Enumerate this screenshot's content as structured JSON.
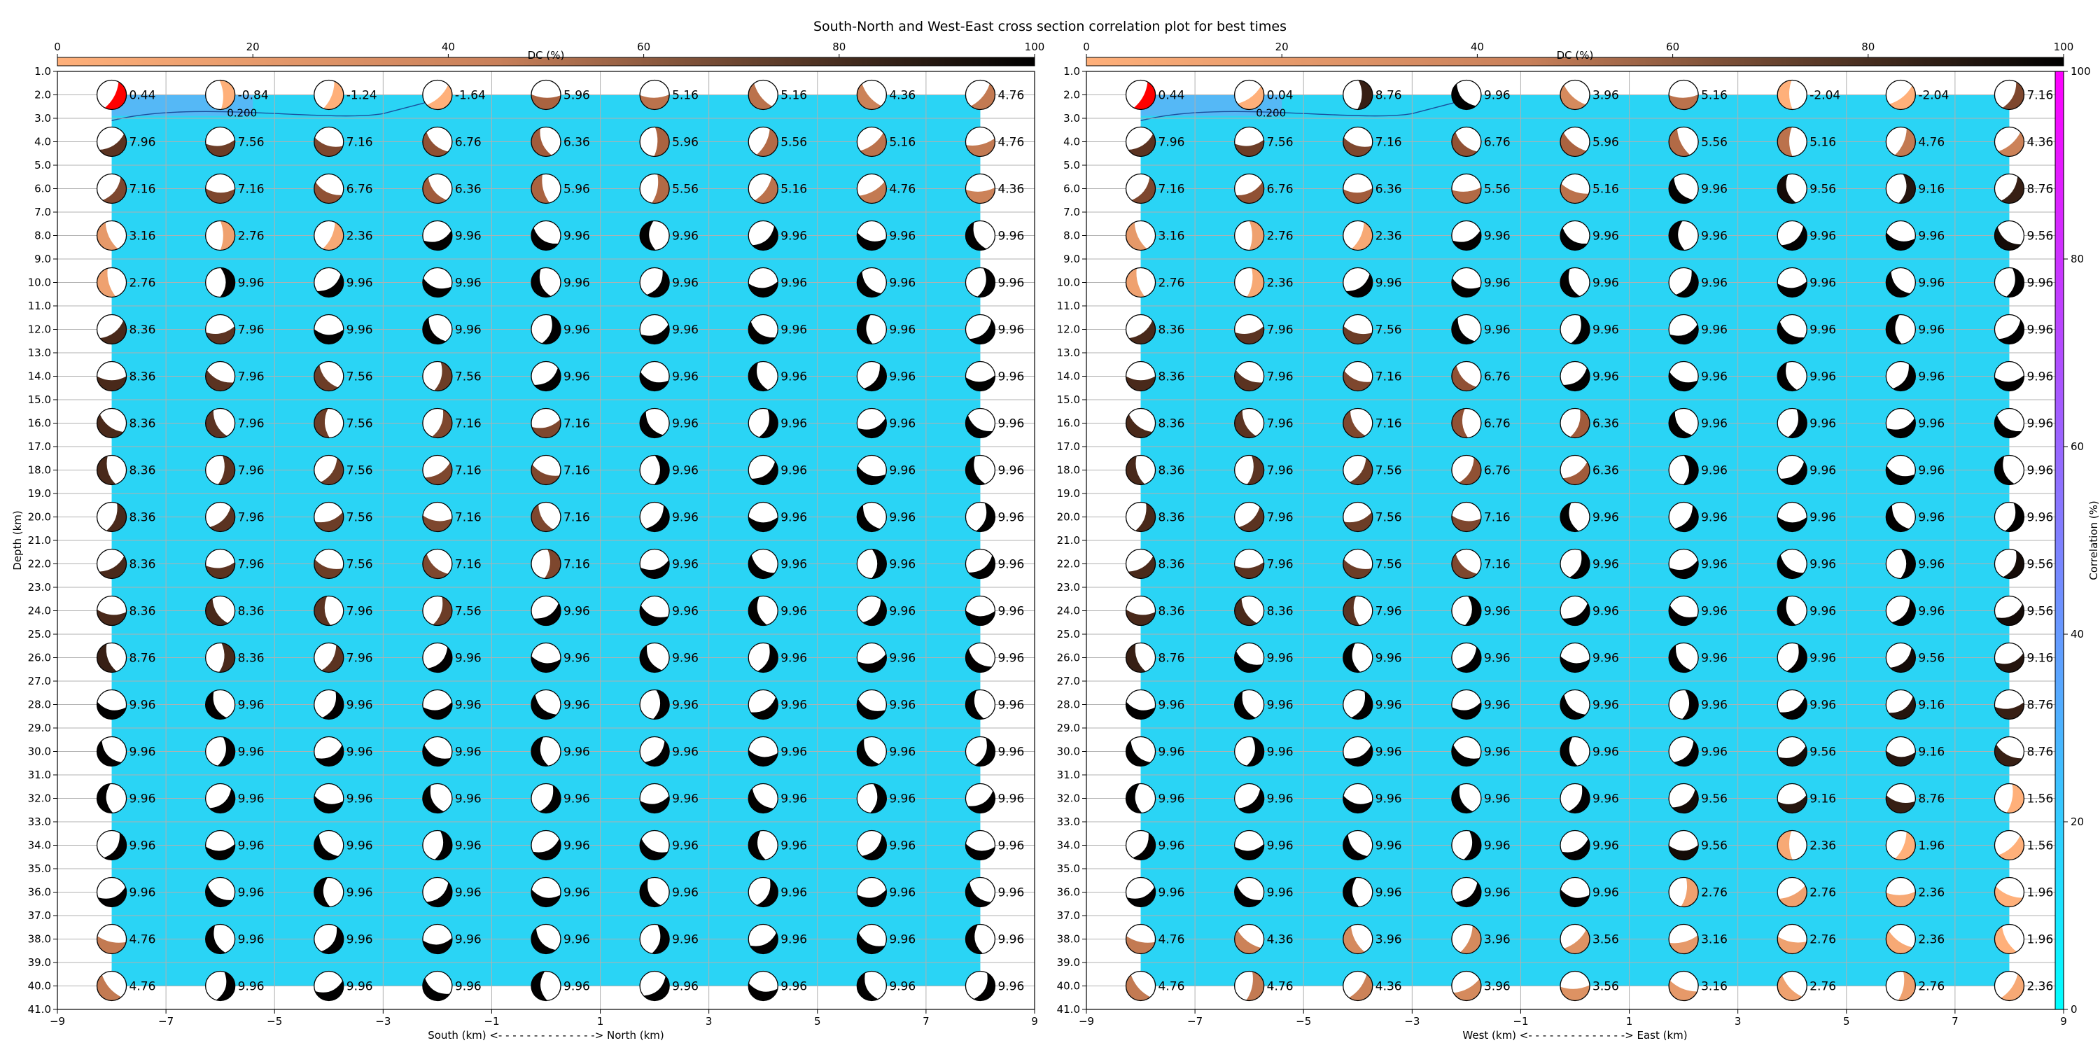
{
  "title": "South-North and West-East cross section correlation plot for best times",
  "colors": {
    "correlation_field": "#2ad4f5",
    "correlation_low": "#00ffff",
    "correlation_high": "#ff00ff",
    "best_solution": "#ff0000",
    "dc_low": "#ffb07a",
    "dc_mid": "#a05a3a",
    "dc_high": "#000000"
  },
  "dc_colorbar": {
    "label": "DC (%)",
    "range": [
      0,
      100
    ],
    "ticks": [
      "0",
      "20",
      "40",
      "60",
      "80",
      "100"
    ],
    "placement": "top"
  },
  "correlation_colorbar": {
    "label": "Correlation (%)",
    "range": [
      0,
      100
    ],
    "ticks": [
      "0",
      "20",
      "40",
      "60",
      "80",
      "100"
    ],
    "placement": "right"
  },
  "chart_data": [
    {
      "type": "heatmap",
      "name": "South-North cross section",
      "xlabel": "South (km) <- - - - - - - - - - - - - -> North (km)",
      "ylabel": "Depth (km)",
      "xlim": [
        -9,
        9
      ],
      "ylim": [
        41,
        1
      ],
      "x_ticks": [
        "−9",
        "−7",
        "−5",
        "−3",
        "−1",
        "1",
        "3",
        "5",
        "7",
        "9"
      ],
      "y_ticks": [
        "1.0",
        "2.0",
        "3.0",
        "4.0",
        "5.0",
        "6.0",
        "7.0",
        "8.0",
        "9.0",
        "10.0",
        "11.0",
        "12.0",
        "13.0",
        "14.0",
        "15.0",
        "16.0",
        "17.0",
        "18.0",
        "19.0",
        "20.0",
        "21.0",
        "22.0",
        "23.0",
        "24.0",
        "25.0",
        "26.0",
        "27.0",
        "28.0",
        "29.0",
        "30.0",
        "31.0",
        "32.0",
        "33.0",
        "34.0",
        "35.0",
        "36.0",
        "37.0",
        "38.0",
        "39.0",
        "40.0",
        "41.0"
      ],
      "grid": true,
      "x": [
        -8,
        -6,
        -4,
        -2,
        0,
        2,
        4,
        6,
        8
      ],
      "depths": [
        2,
        4,
        6,
        8,
        10,
        12,
        14,
        16,
        18,
        20,
        22,
        24,
        26,
        28,
        30,
        32,
        34,
        36,
        38,
        40
      ],
      "contour_label": "0.200",
      "labels": [
        [
          "0.44",
          "-0.84",
          "-1.24",
          "-1.64",
          "5.96",
          "5.16",
          "5.16",
          "4.36",
          "4.76"
        ],
        [
          "7.96",
          "7.56",
          "7.16",
          "6.76",
          "6.36",
          "5.96",
          "5.56",
          "5.16",
          "4.76"
        ],
        [
          "7.16",
          "7.16",
          "6.76",
          "6.36",
          "5.96",
          "5.56",
          "5.16",
          "4.76",
          "4.36"
        ],
        [
          "3.16",
          "2.76",
          "2.36",
          "9.96",
          "9.96",
          "9.96",
          "9.96",
          "9.96",
          "9.96"
        ],
        [
          "2.76",
          "9.96",
          "9.96",
          "9.96",
          "9.96",
          "9.96",
          "9.96",
          "9.96",
          "9.96"
        ],
        [
          "8.36",
          "7.96",
          "9.96",
          "9.96",
          "9.96",
          "9.96",
          "9.96",
          "9.96",
          "9.96"
        ],
        [
          "8.36",
          "7.96",
          "7.56",
          "7.56",
          "9.96",
          "9.96",
          "9.96",
          "9.96",
          "9.96"
        ],
        [
          "8.36",
          "7.96",
          "7.56",
          "7.16",
          "7.16",
          "9.96",
          "9.96",
          "9.96",
          "9.96"
        ],
        [
          "8.36",
          "7.96",
          "7.56",
          "7.16",
          "7.16",
          "9.96",
          "9.96",
          "9.96",
          "9.96"
        ],
        [
          "8.36",
          "7.96",
          "7.56",
          "7.16",
          "7.16",
          "9.96",
          "9.96",
          "9.96",
          "9.96"
        ],
        [
          "8.36",
          "7.96",
          "7.56",
          "7.16",
          "7.16",
          "9.96",
          "9.96",
          "9.96",
          "9.96"
        ],
        [
          "8.36",
          "8.36",
          "7.96",
          "7.56",
          "9.96",
          "9.96",
          "9.96",
          "9.96",
          "9.96"
        ],
        [
          "8.76",
          "8.36",
          "7.96",
          "9.96",
          "9.96",
          "9.96",
          "9.96",
          "9.96",
          "9.96"
        ],
        [
          "9.96",
          "9.96",
          "9.96",
          "9.96",
          "9.96",
          "9.96",
          "9.96",
          "9.96",
          "9.96"
        ],
        [
          "9.96",
          "9.96",
          "9.96",
          "9.96",
          "9.96",
          "9.96",
          "9.96",
          "9.96",
          "9.96"
        ],
        [
          "9.96",
          "9.96",
          "9.96",
          "9.96",
          "9.96",
          "9.96",
          "9.96",
          "9.96",
          "9.96"
        ],
        [
          "9.96",
          "9.96",
          "9.96",
          "9.96",
          "9.96",
          "9.96",
          "9.96",
          "9.96",
          "9.96"
        ],
        [
          "9.96",
          "9.96",
          "9.96",
          "9.96",
          "9.96",
          "9.96",
          "9.96",
          "9.96",
          "9.96"
        ],
        [
          "4.76",
          "9.96",
          "9.96",
          "9.96",
          "9.96",
          "9.96",
          "9.96",
          "9.96",
          "9.96"
        ],
        [
          "4.76",
          "9.96",
          "9.96",
          "9.96",
          "9.96",
          "9.96",
          "9.96",
          "9.96",
          "9.96"
        ]
      ],
      "best": [
        0,
        0
      ]
    },
    {
      "type": "heatmap",
      "name": "West-East cross section",
      "xlabel": "West (km) <- - - - - - - - - - - - - -> East (km)",
      "ylabel": "",
      "xlim": [
        -9,
        9
      ],
      "ylim": [
        41,
        1
      ],
      "x_ticks": [
        "−9",
        "−7",
        "−5",
        "−3",
        "−1",
        "1",
        "3",
        "5",
        "7",
        "9"
      ],
      "y_ticks": [
        "1.0",
        "2.0",
        "3.0",
        "4.0",
        "5.0",
        "6.0",
        "7.0",
        "8.0",
        "9.0",
        "10.0",
        "11.0",
        "12.0",
        "13.0",
        "14.0",
        "15.0",
        "16.0",
        "17.0",
        "18.0",
        "19.0",
        "20.0",
        "21.0",
        "22.0",
        "23.0",
        "24.0",
        "25.0",
        "26.0",
        "27.0",
        "28.0",
        "29.0",
        "30.0",
        "31.0",
        "32.0",
        "33.0",
        "34.0",
        "35.0",
        "36.0",
        "37.0",
        "38.0",
        "39.0",
        "40.0",
        "41.0"
      ],
      "grid": true,
      "x": [
        -8,
        -6,
        -4,
        -2,
        0,
        2,
        4,
        6,
        8
      ],
      "depths": [
        2,
        4,
        6,
        8,
        10,
        12,
        14,
        16,
        18,
        20,
        22,
        24,
        26,
        28,
        30,
        32,
        34,
        36,
        38,
        40
      ],
      "contour_label": "0.200",
      "labels": [
        [
          "0.44",
          "0.04",
          "8.76",
          "9.96",
          "3.96",
          "5.16",
          "-2.04",
          "-2.04",
          "7.16"
        ],
        [
          "7.96",
          "7.56",
          "7.16",
          "6.76",
          "5.96",
          "5.56",
          "5.16",
          "4.76",
          "4.36"
        ],
        [
          "7.16",
          "6.76",
          "6.36",
          "5.56",
          "5.16",
          "9.96",
          "9.56",
          "9.16",
          "8.76"
        ],
        [
          "3.16",
          "2.76",
          "2.36",
          "9.96",
          "9.96",
          "9.96",
          "9.96",
          "9.96",
          "9.56"
        ],
        [
          "2.76",
          "2.36",
          "9.96",
          "9.96",
          "9.96",
          "9.96",
          "9.96",
          "9.96",
          "9.96"
        ],
        [
          "8.36",
          "7.96",
          "7.56",
          "9.96",
          "9.96",
          "9.96",
          "9.96",
          "9.96",
          "9.96"
        ],
        [
          "8.36",
          "7.96",
          "7.16",
          "6.76",
          "9.96",
          "9.96",
          "9.96",
          "9.96",
          "9.96"
        ],
        [
          "8.36",
          "7.96",
          "7.16",
          "6.76",
          "6.36",
          "9.96",
          "9.96",
          "9.96",
          "9.96"
        ],
        [
          "8.36",
          "7.96",
          "7.56",
          "6.76",
          "6.36",
          "9.96",
          "9.96",
          "9.96",
          "9.96"
        ],
        [
          "8.36",
          "7.96",
          "7.56",
          "7.16",
          "9.96",
          "9.96",
          "9.96",
          "9.96",
          "9.96"
        ],
        [
          "8.36",
          "7.96",
          "7.56",
          "7.16",
          "9.96",
          "9.96",
          "9.96",
          "9.96",
          "9.56"
        ],
        [
          "8.36",
          "8.36",
          "7.96",
          "9.96",
          "9.96",
          "9.96",
          "9.96",
          "9.96",
          "9.56"
        ],
        [
          "8.76",
          "9.96",
          "9.96",
          "9.96",
          "9.96",
          "9.96",
          "9.96",
          "9.56",
          "9.16"
        ],
        [
          "9.96",
          "9.96",
          "9.96",
          "9.96",
          "9.96",
          "9.96",
          "9.96",
          "9.16",
          "8.76"
        ],
        [
          "9.96",
          "9.96",
          "9.96",
          "9.96",
          "9.96",
          "9.96",
          "9.56",
          "9.16",
          "8.76"
        ],
        [
          "9.96",
          "9.96",
          "9.96",
          "9.96",
          "9.96",
          "9.56",
          "9.16",
          "8.76",
          "1.56"
        ],
        [
          "9.96",
          "9.96",
          "9.96",
          "9.96",
          "9.96",
          "9.56",
          "2.36",
          "1.96",
          "1.56"
        ],
        [
          "9.96",
          "9.96",
          "9.96",
          "9.96",
          "9.96",
          "2.76",
          "2.76",
          "2.36",
          "1.96"
        ],
        [
          "4.76",
          "4.36",
          "3.96",
          "3.96",
          "3.56",
          "3.16",
          "2.76",
          "2.36",
          "1.96"
        ],
        [
          "4.76",
          "4.76",
          "4.36",
          "3.96",
          "3.56",
          "3.16",
          "2.76",
          "2.76",
          "2.36"
        ]
      ],
      "best": [
        0,
        0
      ]
    }
  ]
}
